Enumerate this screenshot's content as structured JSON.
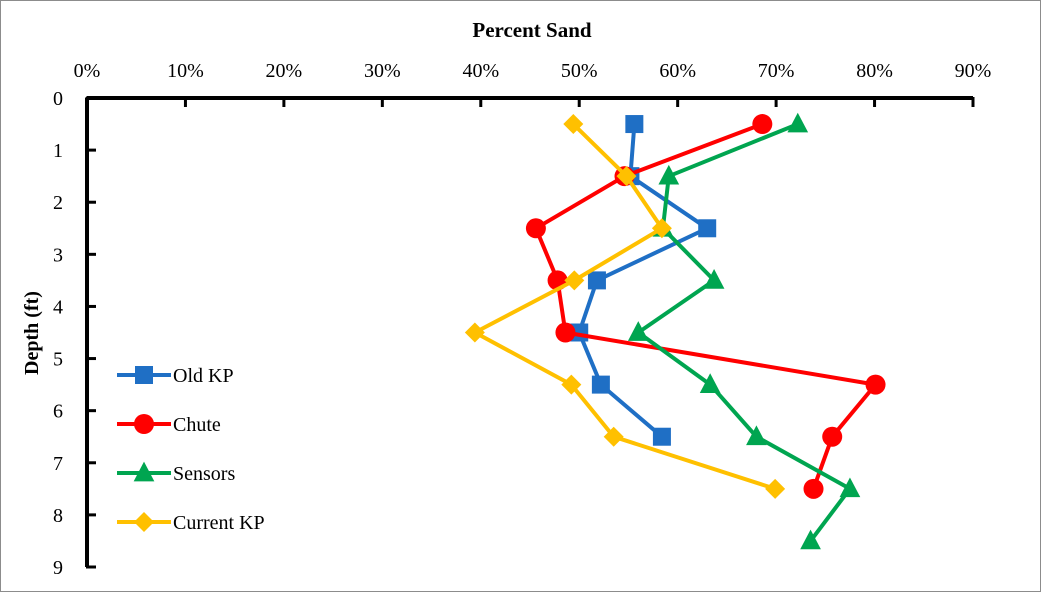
{
  "chart_data": {
    "type": "line",
    "title": "Percent Sand",
    "xlabel": "",
    "ylabel": "Depth (ft)",
    "x_axis_position": "top",
    "y_axis_inverted": true,
    "xlim": [
      0,
      0.9
    ],
    "ylim": [
      0,
      9
    ],
    "x_ticks": [
      "0%",
      "10%",
      "20%",
      "30%",
      "40%",
      "50%",
      "60%",
      "70%",
      "80%",
      "90%"
    ],
    "y_ticks": [
      "0",
      "1",
      "2",
      "3",
      "4",
      "5",
      "6",
      "7",
      "8",
      "9"
    ],
    "grid": false,
    "legend_position": "bottom-left",
    "series": [
      {
        "name": "Old KP",
        "color": "#1f6fc5",
        "marker": "square",
        "points": [
          [
            0.556,
            0.5
          ],
          [
            0.552,
            1.5
          ],
          [
            0.63,
            2.5
          ],
          [
            0.518,
            3.5
          ],
          [
            0.5,
            4.5
          ],
          [
            0.522,
            5.5
          ],
          [
            0.584,
            6.5
          ]
        ]
      },
      {
        "name": "Chute",
        "color": "#ff0000",
        "marker": "circle",
        "points": [
          [
            0.686,
            0.5
          ],
          [
            0.546,
            1.5
          ],
          [
            0.456,
            2.5
          ],
          [
            0.478,
            3.5
          ],
          [
            0.486,
            4.5
          ],
          [
            0.801,
            5.5
          ],
          [
            0.757,
            6.5
          ],
          [
            0.738,
            7.5
          ]
        ]
      },
      {
        "name": "Sensors",
        "color": "#00a550",
        "marker": "triangle",
        "points": [
          [
            0.722,
            0.5
          ],
          [
            0.591,
            1.5
          ],
          [
            0.585,
            2.5
          ],
          [
            0.637,
            3.5
          ],
          [
            0.56,
            4.5
          ],
          [
            0.633,
            5.5
          ],
          [
            0.68,
            6.5
          ],
          [
            0.775,
            7.5
          ],
          [
            0.735,
            8.5
          ]
        ]
      },
      {
        "name": "Current KP",
        "color": "#ffc000",
        "marker": "diamond",
        "points": [
          [
            0.494,
            0.5
          ],
          [
            0.548,
            1.5
          ],
          [
            0.584,
            2.5
          ],
          [
            0.495,
            3.5
          ],
          [
            0.394,
            4.5
          ],
          [
            0.492,
            5.5
          ],
          [
            0.535,
            6.5
          ],
          [
            0.699,
            7.5
          ]
        ]
      }
    ]
  }
}
